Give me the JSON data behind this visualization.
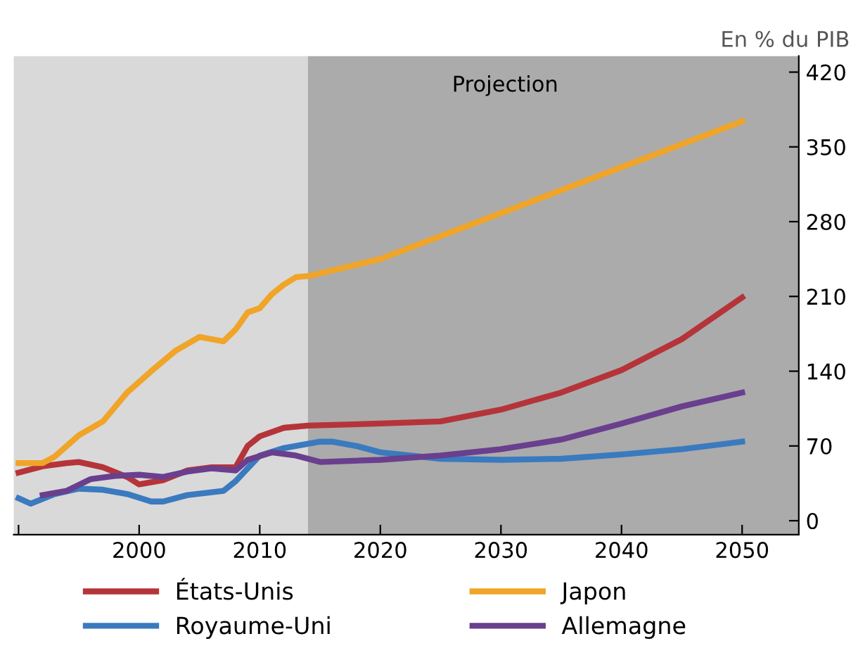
{
  "chart_data": {
    "type": "line",
    "ylabel": "En % du PIB",
    "xlim": [
      1989.6,
      2054.7
    ],
    "ylim": [
      -13,
      435
    ],
    "xticks": [
      {
        "value": 1990,
        "label": null
      },
      2000,
      2010,
      2020,
      2030,
      2040,
      2050
    ],
    "yticks": [
      0,
      70,
      140,
      210,
      280,
      350,
      420
    ],
    "grid": false,
    "legend": "bottom",
    "line_style": "solid",
    "marker": "none",
    "bands": [
      {
        "axis": "x",
        "from": 2014,
        "to": 2054.7,
        "label": "Projection",
        "color": "#ababab"
      }
    ],
    "series": [
      {
        "name": "États-Unis",
        "color": "#b5343a",
        "x": [
          1990,
          1992,
          1994,
          1995,
          1997,
          1999,
          2000,
          2002,
          2004,
          2006,
          2008,
          2009,
          2010,
          2012,
          2014,
          2020,
          2025,
          2030,
          2035,
          2040,
          2045,
          2050
        ],
        "values": [
          45,
          51,
          54,
          55,
          50,
          41,
          34,
          38,
          47,
          50,
          50,
          70,
          79,
          87,
          89,
          91,
          93,
          104,
          120,
          141,
          170,
          209
        ]
      },
      {
        "name": "Japon",
        "color": "#f0a428",
        "x": [
          1990,
          1992,
          1993,
          1995,
          1997,
          1999,
          2001,
          2003,
          2005,
          2006,
          2007,
          2008,
          2009,
          2010,
          2011,
          2012,
          2013,
          2014,
          2020,
          2050
        ],
        "values": [
          54,
          54,
          60,
          80,
          93,
          120,
          140,
          159,
          172,
          170,
          168,
          179,
          195,
          199,
          212,
          221,
          228,
          229,
          245,
          374
        ]
      },
      {
        "name": "Royaume-Uni",
        "color": "#3a7abf",
        "x": [
          1990,
          1991,
          1993,
          1995,
          1997,
          1999,
          2001,
          2002,
          2004,
          2007,
          2008,
          2010,
          2012,
          2015,
          2016,
          2018,
          2020,
          2025,
          2030,
          2035,
          2040,
          2045,
          2050
        ],
        "values": [
          21,
          16,
          25,
          30,
          29,
          25,
          18,
          18,
          24,
          28,
          37,
          61,
          68,
          74,
          74,
          70,
          64,
          58,
          57,
          58,
          62,
          67,
          74
        ]
      },
      {
        "name": "Allemagne",
        "color": "#6a3f8e",
        "x": [
          1992,
          1994,
          1996,
          1998,
          2000,
          2002,
          2004,
          2006,
          2008,
          2009,
          2011,
          2013,
          2015,
          2020,
          2025,
          2030,
          2035,
          2040,
          2045,
          2050
        ],
        "values": [
          24,
          28,
          39,
          42,
          43,
          41,
          46,
          49,
          47,
          57,
          64,
          61,
          55,
          57,
          61,
          67,
          76,
          91,
          107,
          120
        ]
      }
    ]
  }
}
